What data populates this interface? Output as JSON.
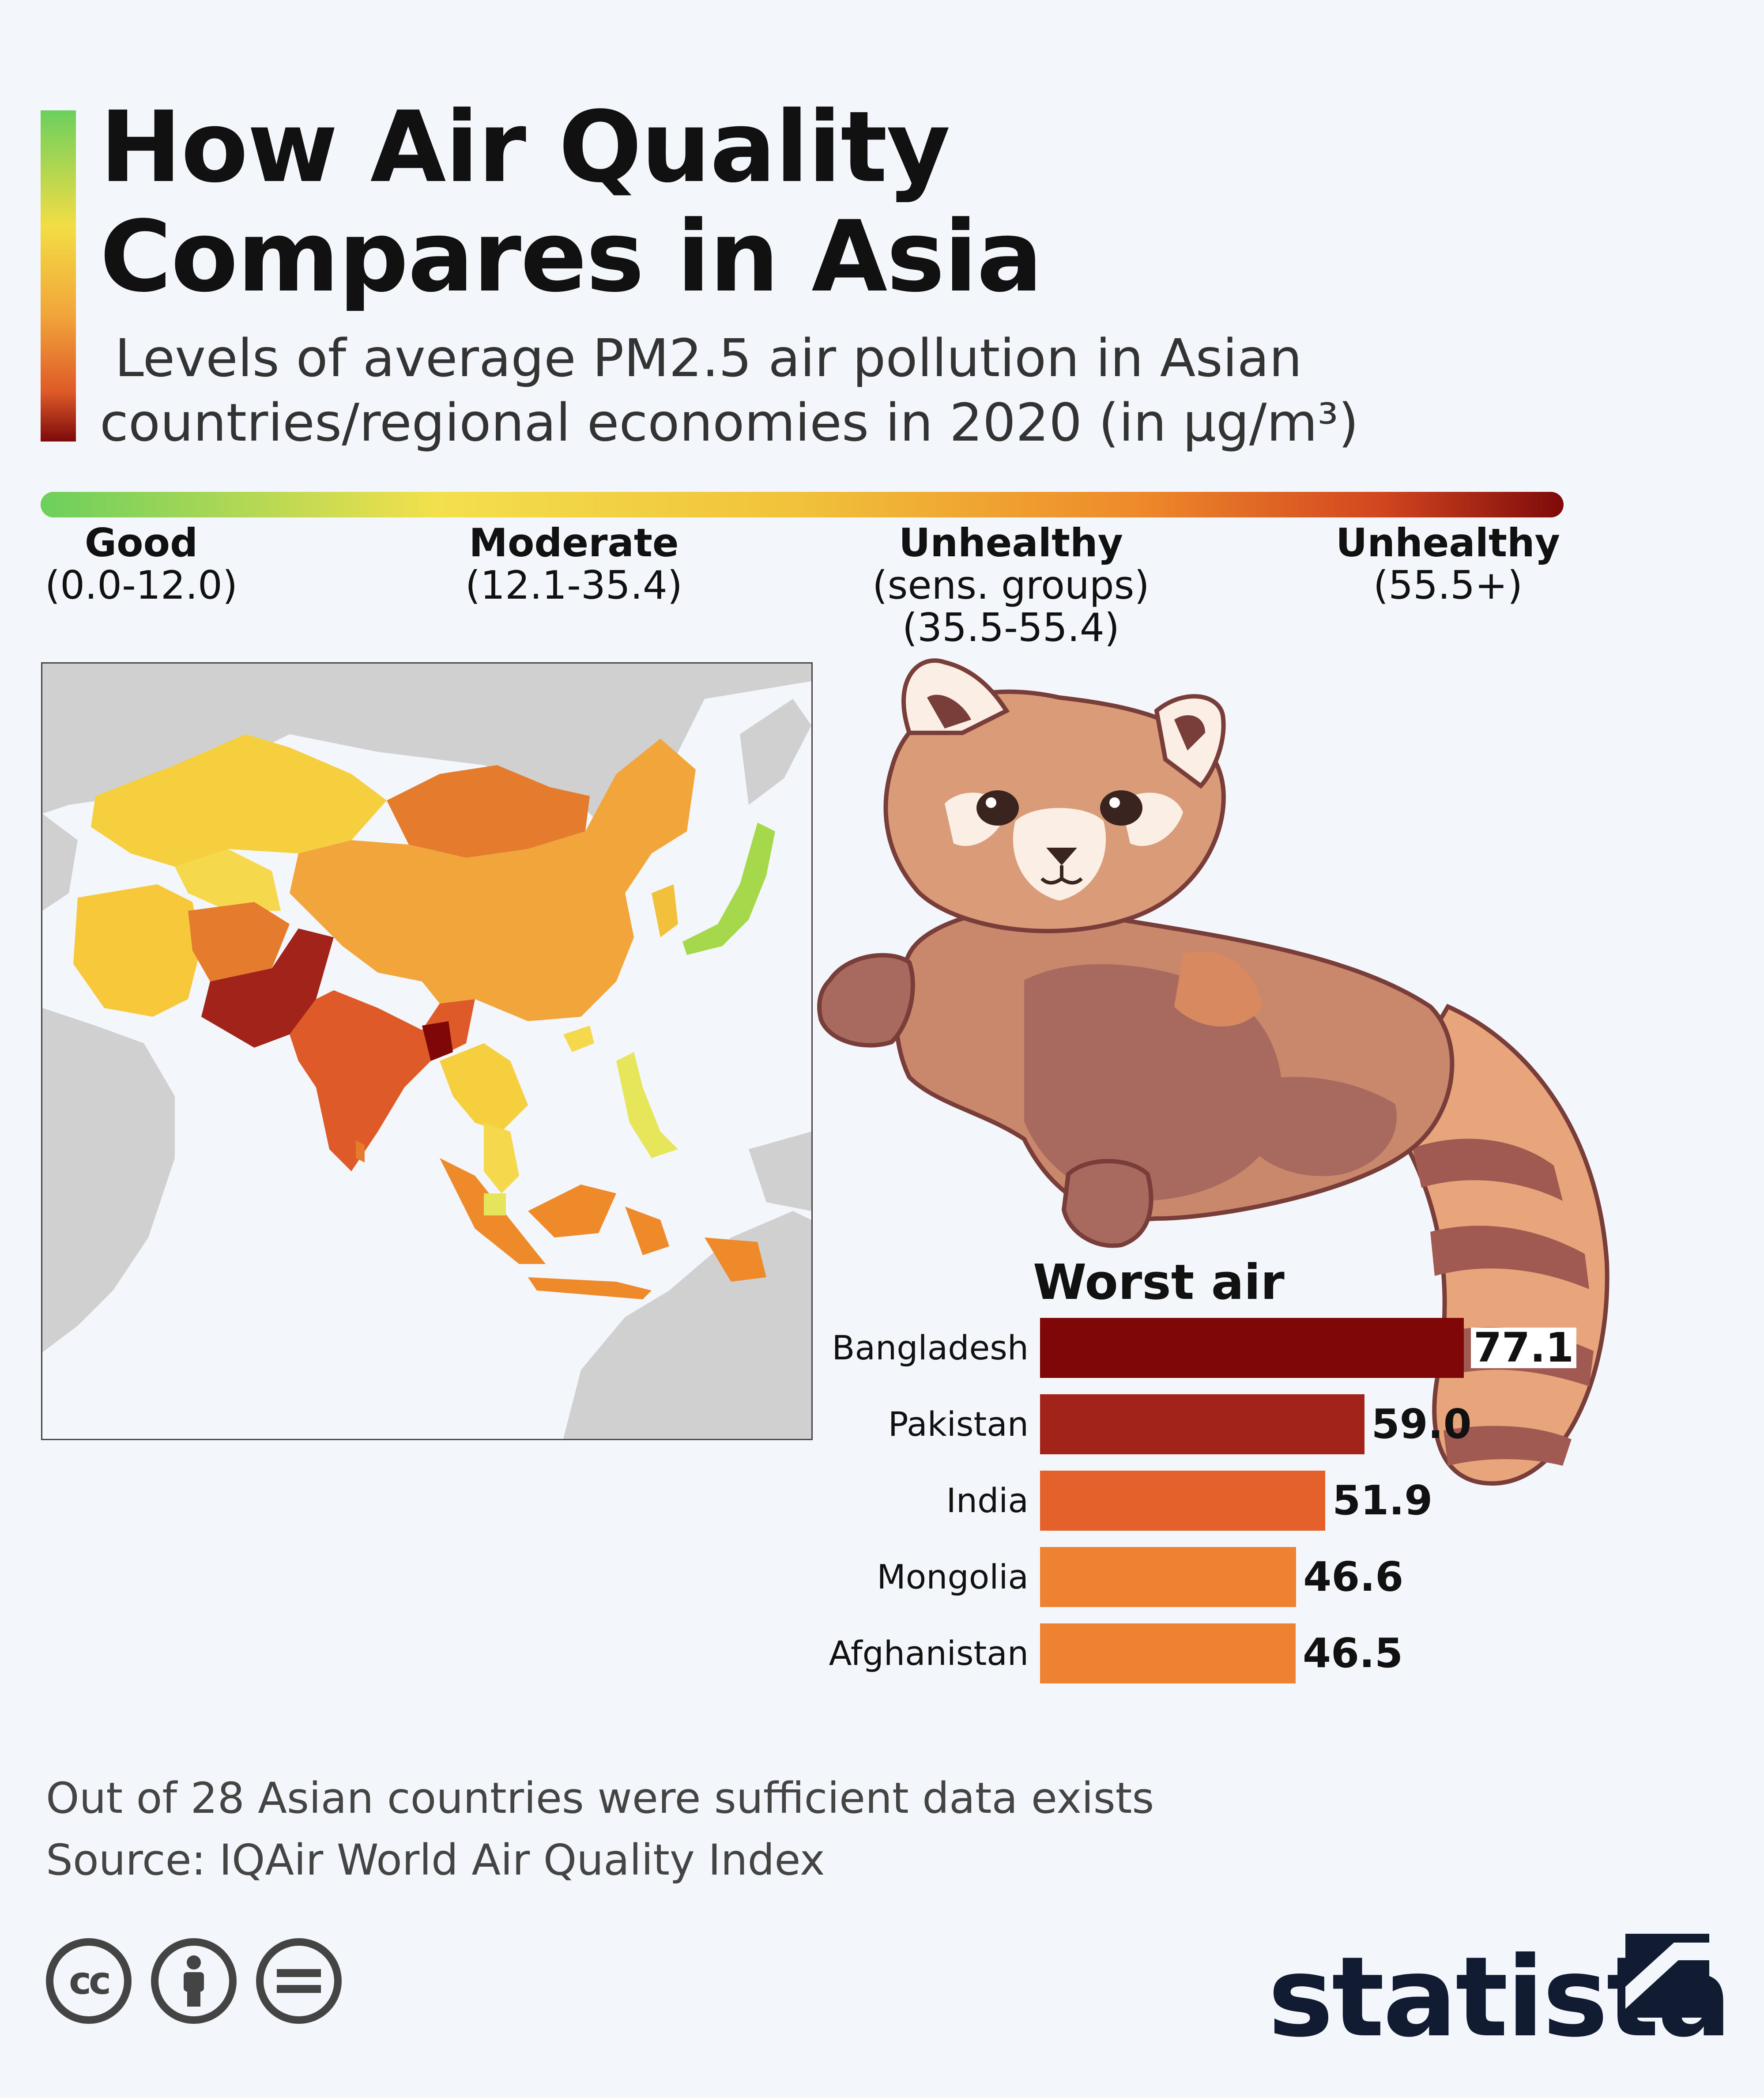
{
  "title_lines": [
    "How Air Quality",
    "Compares in Asia"
  ],
  "subtitle_lines": [
    "Levels of average PM2.5 air pollution in Asian",
    "countries/regional economies in 2020 (in µg/m³)"
  ],
  "scale_categories": [
    {
      "name": "Good",
      "range": "(0.0-12.0)",
      "range2": ""
    },
    {
      "name": "Moderate",
      "range": "(12.1-35.4)",
      "range2": ""
    },
    {
      "name": "Unhealthy",
      "range": "(sens. groups)",
      "range2": "(35.5-55.4)"
    },
    {
      "name": "Unhealthy",
      "range": "(55.5+)",
      "range2": ""
    }
  ],
  "colors": {
    "good": "#6ccf5d",
    "moderate": "#f3e04c",
    "sensitive": "#f1a53a",
    "unhealthy": "#d2461f",
    "very_bad": "#7d0a0a",
    "land_gray": "#d0d0d0"
  },
  "chart_data": {
    "type": "bar",
    "title": "Worst air",
    "orientation": "horizontal",
    "categories": [
      "Bangladesh",
      "Pakistan",
      "India",
      "Mongolia",
      "Afghanistan"
    ],
    "values": [
      77.1,
      59.0,
      51.9,
      46.6,
      46.5
    ],
    "value_labels": [
      "77.1",
      "59.0",
      "51.9",
      "46.6",
      "46.5"
    ],
    "bar_colors": [
      "#7f0707",
      "#a2231a",
      "#e5612c",
      "#ee8230",
      "#ee8230"
    ],
    "xlim": [
      0,
      80
    ]
  },
  "map_illustration": "map-of-asia",
  "panda_illustration": "red-panda",
  "footer": {
    "note": "Out of 28 Asian countries were sufficient data exists",
    "source": "Source: IQAir World Air Quality Index"
  },
  "license_icons": [
    "cc",
    "by",
    "nd"
  ],
  "brand": "statista"
}
